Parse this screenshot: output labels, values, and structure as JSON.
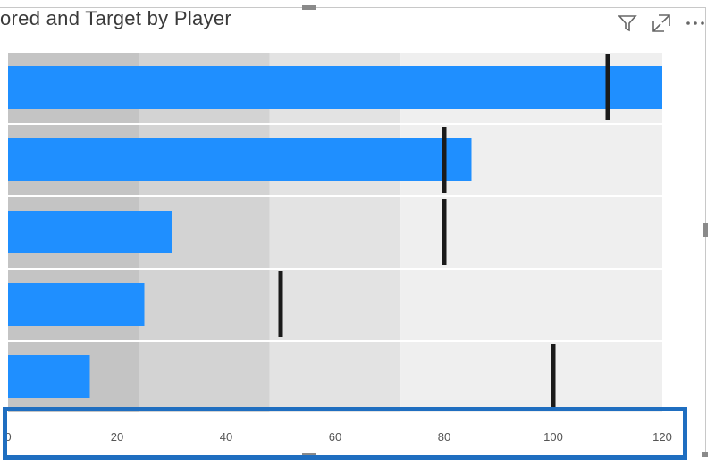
{
  "visual": {
    "title": "ored and Target by Player",
    "icons": [
      "filter-icon",
      "focus-mode-icon",
      "more-options-icon"
    ]
  },
  "colors": {
    "bar": "#1f8fff",
    "target": "#1a1a1a",
    "band_poor": "#c4c4c4",
    "band_ok": "#d3d3d3",
    "band_good": "#e3e3e3",
    "band_excellent": "#efefef",
    "highlight_box": "#1f6ec0"
  },
  "chart_data": {
    "type": "bar",
    "orientation": "horizontal",
    "subtype": "bullet",
    "title": "ored and Target by Player",
    "xlim": [
      0,
      120
    ],
    "ticks": [
      "0",
      "20",
      "40",
      "60",
      "80",
      "100",
      "120"
    ],
    "tick_values": [
      0,
      20,
      40,
      60,
      80,
      100,
      120
    ],
    "bands": [
      24,
      48,
      72,
      120
    ],
    "series": [
      {
        "values": [
          120,
          85,
          30,
          25,
          15
        ]
      },
      {
        "values": [
          110,
          80,
          80,
          50,
          100
        ]
      }
    ],
    "grid": false
  }
}
